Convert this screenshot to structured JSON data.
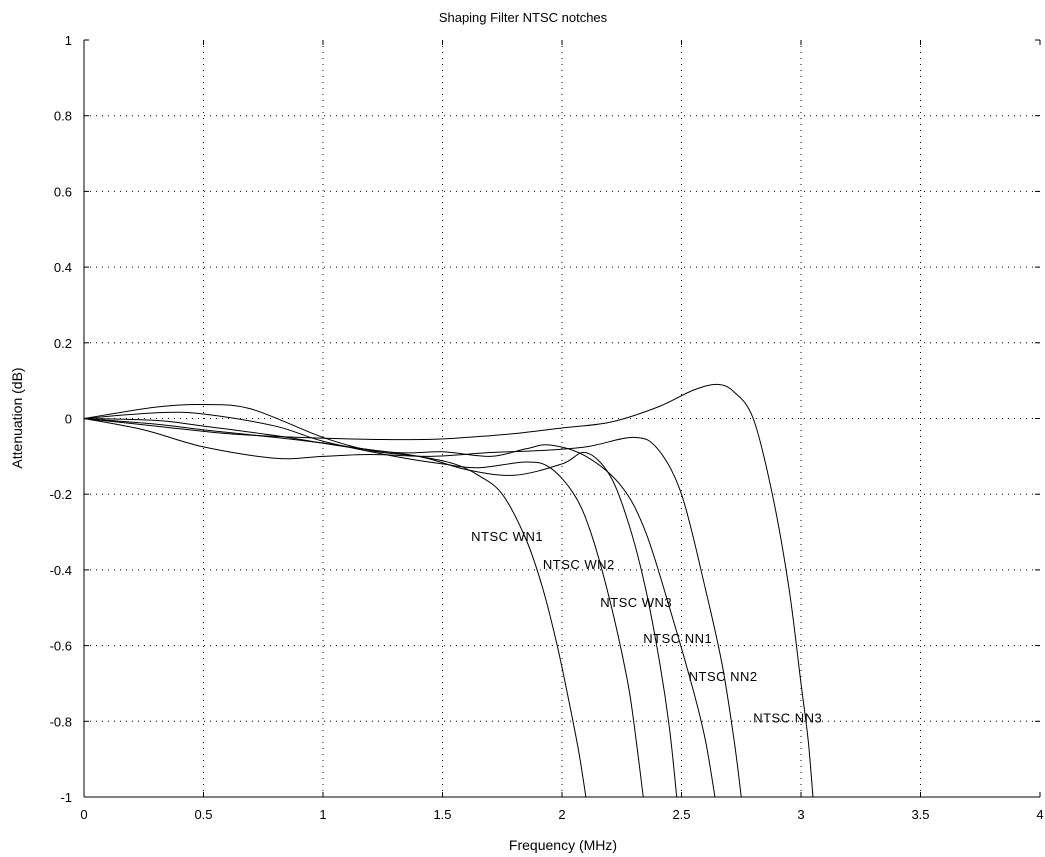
{
  "chart_data": {
    "type": "line",
    "title": "Shaping Filter NTSC notches",
    "xlabel": "Frequency (MHz)",
    "ylabel": "Attenuation (dB)",
    "xlim": [
      0,
      4
    ],
    "ylim": [
      -1,
      1
    ],
    "grid": true,
    "x_ticks": [
      "0",
      "0.5",
      "1",
      "1.5",
      "2",
      "2.5",
      "3",
      "3.5",
      "4"
    ],
    "y_ticks": [
      "1",
      "0.8",
      "0.6",
      "0.4",
      "0.2",
      "0",
      "-0.2",
      "-0.4",
      "-0.6",
      "-0.8",
      "-1"
    ],
    "series": [
      {
        "name": "NTSC WN1",
        "label_at": [
          1.62,
          -0.31
        ],
        "points": [
          [
            0,
            0
          ],
          [
            0.3,
            0.03
          ],
          [
            0.5,
            0.037
          ],
          [
            0.7,
            0.025
          ],
          [
            1.0,
            -0.05
          ],
          [
            1.2,
            -0.085
          ],
          [
            1.4,
            -0.1
          ],
          [
            1.55,
            -0.12
          ],
          [
            1.65,
            -0.15
          ],
          [
            1.75,
            -0.2
          ],
          [
            1.85,
            -0.32
          ],
          [
            1.92,
            -0.45
          ],
          [
            1.98,
            -0.6
          ],
          [
            2.03,
            -0.75
          ],
          [
            2.07,
            -0.88
          ],
          [
            2.1,
            -1.0
          ]
        ]
      },
      {
        "name": "NTSC WN2",
        "label_at": [
          1.92,
          -0.385
        ],
        "points": [
          [
            0,
            0
          ],
          [
            0.3,
            0.015
          ],
          [
            0.5,
            0.012
          ],
          [
            0.8,
            -0.02
          ],
          [
            1.0,
            -0.06
          ],
          [
            1.3,
            -0.1
          ],
          [
            1.5,
            -0.12
          ],
          [
            1.65,
            -0.13
          ],
          [
            1.85,
            -0.115
          ],
          [
            1.95,
            -0.13
          ],
          [
            2.05,
            -0.2
          ],
          [
            2.12,
            -0.3
          ],
          [
            2.2,
            -0.48
          ],
          [
            2.27,
            -0.68
          ],
          [
            2.3,
            -0.8
          ],
          [
            2.34,
            -1.0
          ]
        ]
      },
      {
        "name": "NTSC WN3",
        "label_at": [
          2.16,
          -0.485
        ],
        "points": [
          [
            0,
            0
          ],
          [
            0.3,
            -0.005
          ],
          [
            0.5,
            -0.02
          ],
          [
            0.8,
            -0.045
          ],
          [
            1.1,
            -0.075
          ],
          [
            1.4,
            -0.1
          ],
          [
            1.6,
            -0.135
          ],
          [
            1.8,
            -0.15
          ],
          [
            2.0,
            -0.12
          ],
          [
            2.1,
            -0.09
          ],
          [
            2.2,
            -0.15
          ],
          [
            2.28,
            -0.28
          ],
          [
            2.35,
            -0.45
          ],
          [
            2.41,
            -0.65
          ],
          [
            2.45,
            -0.82
          ],
          [
            2.48,
            -1.0
          ]
        ]
      },
      {
        "name": "NTSC NN1",
        "label_at": [
          2.34,
          -0.58
        ],
        "points": [
          [
            0,
            0
          ],
          [
            0.3,
            -0.015
          ],
          [
            0.5,
            -0.03
          ],
          [
            0.8,
            -0.05
          ],
          [
            1.0,
            -0.065
          ],
          [
            1.3,
            -0.09
          ],
          [
            1.5,
            -0.088
          ],
          [
            1.7,
            -0.1
          ],
          [
            1.85,
            -0.08
          ],
          [
            1.95,
            -0.07
          ],
          [
            2.1,
            -0.1
          ],
          [
            2.25,
            -0.18
          ],
          [
            2.35,
            -0.3
          ],
          [
            2.45,
            -0.5
          ],
          [
            2.55,
            -0.72
          ],
          [
            2.6,
            -0.85
          ],
          [
            2.64,
            -1.0
          ]
        ]
      },
      {
        "name": "NTSC NN2",
        "label_at": [
          2.53,
          -0.68
        ],
        "points": [
          [
            0,
            0
          ],
          [
            0.25,
            -0.03
          ],
          [
            0.5,
            -0.075
          ],
          [
            0.8,
            -0.105
          ],
          [
            1.0,
            -0.1
          ],
          [
            1.2,
            -0.095
          ],
          [
            1.45,
            -0.1
          ],
          [
            1.7,
            -0.09
          ],
          [
            1.9,
            -0.085
          ],
          [
            2.1,
            -0.075
          ],
          [
            2.3,
            -0.05
          ],
          [
            2.4,
            -0.08
          ],
          [
            2.5,
            -0.2
          ],
          [
            2.6,
            -0.45
          ],
          [
            2.67,
            -0.65
          ],
          [
            2.72,
            -0.85
          ],
          [
            2.75,
            -1.0
          ]
        ]
      },
      {
        "name": "NTSC NN3",
        "label_at": [
          2.8,
          -0.79
        ],
        "points": [
          [
            0,
            0
          ],
          [
            0.3,
            -0.02
          ],
          [
            0.6,
            -0.04
          ],
          [
            0.9,
            -0.05
          ],
          [
            1.2,
            -0.055
          ],
          [
            1.45,
            -0.055
          ],
          [
            1.6,
            -0.05
          ],
          [
            1.8,
            -0.04
          ],
          [
            2.0,
            -0.025
          ],
          [
            2.2,
            -0.01
          ],
          [
            2.4,
            0.03
          ],
          [
            2.55,
            0.075
          ],
          [
            2.65,
            0.09
          ],
          [
            2.72,
            0.07
          ],
          [
            2.8,
            0.0
          ],
          [
            2.88,
            -0.2
          ],
          [
            2.95,
            -0.45
          ],
          [
            3.0,
            -0.7
          ],
          [
            3.03,
            -0.85
          ],
          [
            3.05,
            -1.0
          ]
        ]
      }
    ]
  }
}
